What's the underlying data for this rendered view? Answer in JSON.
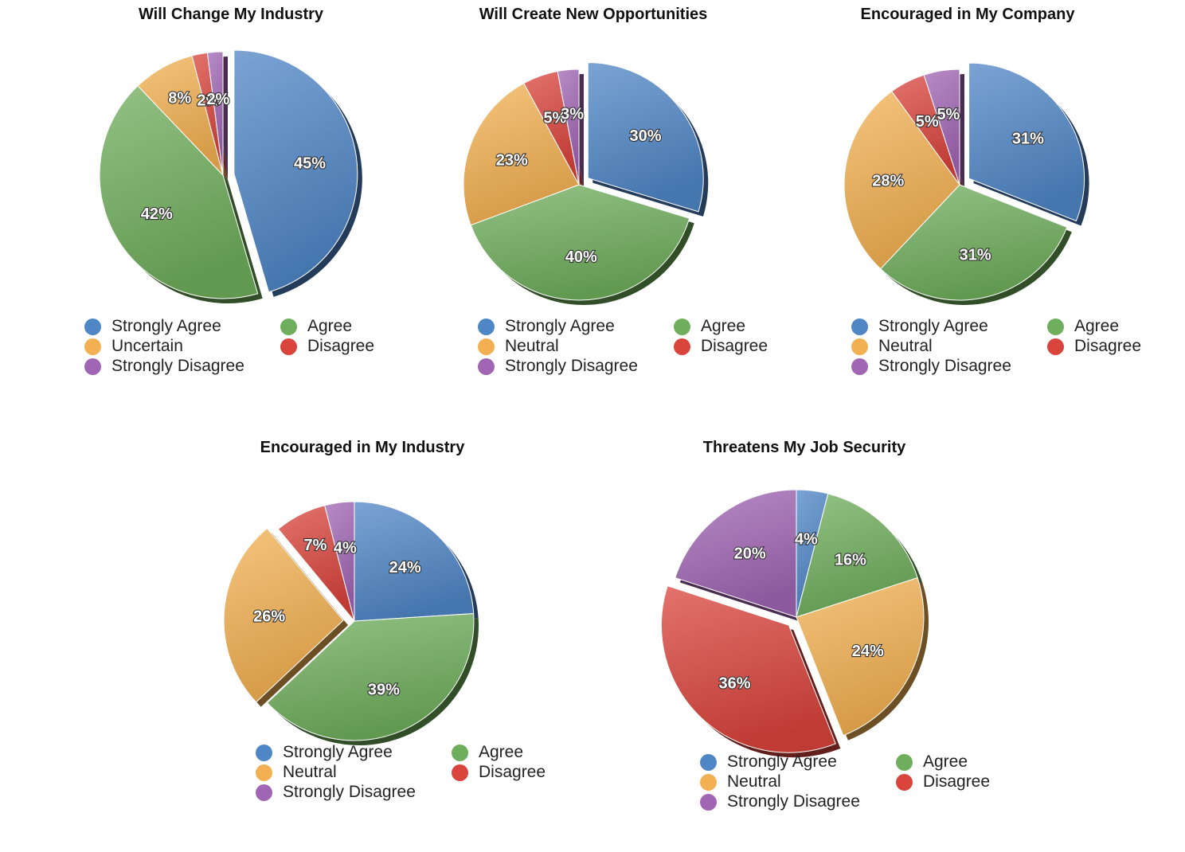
{
  "colors": {
    "Strongly Agree": "#4f86c6",
    "Agree": "#6fae5c",
    "Uncertain": "#f2b052",
    "Neutral": "#f2b052",
    "Disagree": "#d9443c",
    "Strongly Disagree": "#a065b3"
  },
  "chart_data": [
    {
      "type": "pie",
      "title": "Will Change My Industry",
      "labels": [
        "Strongly Agree",
        "Agree",
        "Uncertain",
        "Disagree",
        "Strongly Disagree"
      ],
      "values": [
        45,
        42,
        8,
        2,
        2
      ],
      "label_text": [
        "45%",
        "42%",
        "8%",
        "2%",
        "2%"
      ],
      "exploded": "Strongly Agree",
      "legend": [
        "Strongly Agree",
        "Agree",
        "Uncertain",
        "Disagree",
        "Strongly Disagree"
      ]
    },
    {
      "type": "pie",
      "title": "Will Create New Opportunities",
      "labels": [
        "Strongly Agree",
        "Agree",
        "Neutral",
        "Disagree",
        "Strongly Disagree"
      ],
      "values": [
        30,
        40,
        23,
        5,
        3
      ],
      "label_text": [
        "30%",
        "40%",
        "23%",
        "5%",
        "3%"
      ],
      "exploded": "Strongly Agree",
      "legend": [
        "Strongly Agree",
        "Agree",
        "Neutral",
        "Disagree",
        "Strongly Disagree"
      ]
    },
    {
      "type": "pie",
      "title": "Encouraged in My Company",
      "labels": [
        "Strongly Agree",
        "Agree",
        "Neutral",
        "Disagree",
        "Strongly Disagree"
      ],
      "values": [
        31,
        31,
        28,
        5,
        5
      ],
      "label_text": [
        "31%",
        "31%",
        "28%",
        "5%",
        "5%"
      ],
      "exploded": "Strongly Agree",
      "legend": [
        "Strongly Agree",
        "Agree",
        "Neutral",
        "Disagree",
        "Strongly Disagree"
      ]
    },
    {
      "type": "pie",
      "title": "Encouraged in My Industry",
      "labels": [
        "Strongly Agree",
        "Agree",
        "Neutral",
        "Disagree",
        "Strongly Disagree"
      ],
      "values": [
        24,
        39,
        26,
        7,
        4
      ],
      "label_text": [
        "24%",
        "39%",
        "26%",
        "7%",
        "4%"
      ],
      "exploded": "Neutral",
      "legend": [
        "Strongly Agree",
        "Agree",
        "Neutral",
        "Disagree",
        "Strongly Disagree"
      ]
    },
    {
      "type": "pie",
      "title": "Threatens My Job Security",
      "labels": [
        "Strongly Agree",
        "Agree",
        "Neutral",
        "Disagree",
        "Strongly Disagree"
      ],
      "values": [
        4,
        16,
        24,
        36,
        20
      ],
      "label_text": [
        "4%",
        "16%",
        "24%",
        "36%",
        "20%"
      ],
      "exploded": "Disagree",
      "legend": [
        "Strongly Agree",
        "Agree",
        "Neutral",
        "Disagree",
        "Strongly Disagree"
      ]
    }
  ]
}
